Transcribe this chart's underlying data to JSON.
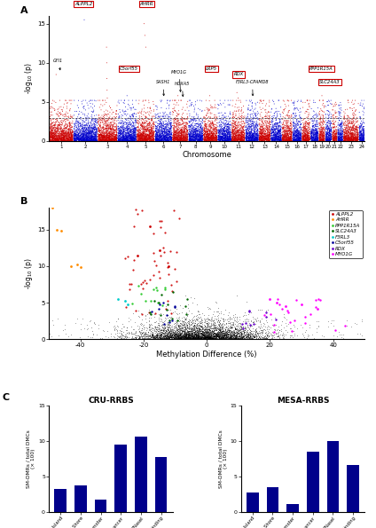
{
  "panel_A": {
    "ylabel": "-log$_{10}$ (p)",
    "xlabel": "Chromosome",
    "threshold": 3.0,
    "chr_colors": [
      "#CC0000",
      "#0000CC"
    ],
    "ymax": 16,
    "yticks": [
      0,
      5,
      10,
      15
    ],
    "chr_sizes": [
      249,
      243,
      198,
      191,
      181,
      171,
      159,
      146,
      141,
      135,
      135,
      133,
      115,
      107,
      102,
      90,
      81,
      78,
      59,
      63,
      48,
      51,
      155,
      57
    ]
  },
  "panel_B": {
    "ylabel": "-log$_{10}$ (p)",
    "xlabel": "Methylation Difference (%)",
    "xmin": -50,
    "xmax": 50,
    "ymax": 18,
    "yticks": [
      0,
      5,
      10,
      15
    ],
    "xticks": [
      -40,
      -20,
      0,
      20,
      40
    ],
    "legend": [
      {
        "label": "ALPPL2",
        "color": "#CC0000"
      },
      {
        "label": "AHRR",
        "color": "#FF8C00"
      },
      {
        "label": "PPP1R15A",
        "color": "#33CC33"
      },
      {
        "label": "SLC24A3",
        "color": "#006600"
      },
      {
        "label": "F3RL3",
        "color": "#00CCCC"
      },
      {
        "label": "C5orf55",
        "color": "#000099"
      },
      {
        "label": "RDX",
        "color": "#6600CC"
      },
      {
        "label": "MYO1G",
        "color": "#FF00FF"
      }
    ]
  },
  "panel_C": {
    "cru_title": "CRU-RRBS",
    "mesa_title": "MESA-RRBS",
    "ylabel": "SM-DMRs / total DMCs\n(× 100)",
    "categories": [
      "CpG Island",
      "CpG Island Shore",
      "Promoter",
      "Enhancer",
      "DNaseI",
      "TF Binding"
    ],
    "cru_values": [
      3.3,
      3.8,
      1.8,
      9.5,
      10.7,
      7.8
    ],
    "mesa_values": [
      2.8,
      3.5,
      1.2,
      8.5,
      10.0,
      6.6
    ],
    "bar_color": "#00008B",
    "ymax": 15,
    "yticks": [
      0,
      5,
      10,
      15
    ]
  }
}
